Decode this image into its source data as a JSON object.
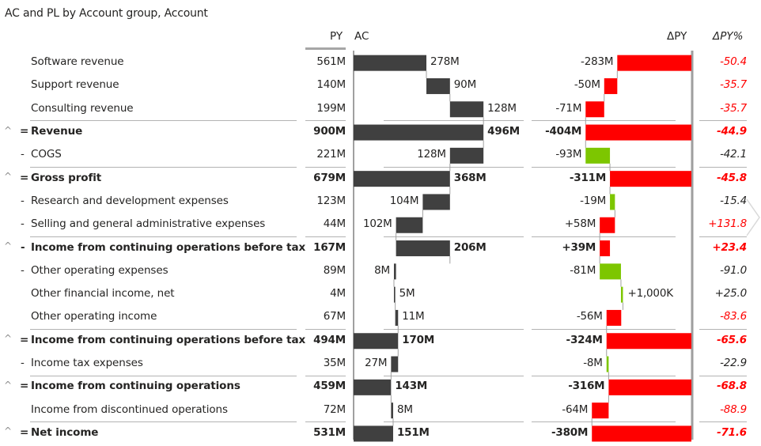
{
  "title": "AC and PL by Account group, Account",
  "headers": {
    "py": "PY",
    "ac": "AC",
    "dpy": "ΔPY",
    "dpy_pct": "ΔPY%"
  },
  "colors": {
    "bar_dark": "#404040",
    "negative": "#ff0000",
    "positive": "#7dc600",
    "text": "#252423",
    "separator": "#b3b3b3",
    "axis": "#808080"
  },
  "chart_data": {
    "type": "table",
    "title": "AC and PL by Account group, Account",
    "columns": [
      "Account",
      "PY",
      "AC",
      "ΔPY",
      "ΔPY%"
    ],
    "unit": "M",
    "rows": [
      {
        "label": "Software revenue",
        "op": "",
        "expander": false,
        "total": false,
        "py": "561M",
        "ac": "278M",
        "ac_value": 278,
        "ac_start": 0,
        "dpy": "-283M",
        "dpy_value": -283,
        "dpy_start": 0,
        "dpy_color": "negative",
        "dpy_pct": "-50.4",
        "pct_color": "negative",
        "sep": false
      },
      {
        "label": "Support revenue",
        "op": "",
        "expander": false,
        "total": false,
        "py": "140M",
        "ac": "90M",
        "ac_value": 90,
        "ac_start": 278,
        "dpy": "-50M",
        "dpy_value": -50,
        "dpy_start": -283,
        "dpy_color": "negative",
        "dpy_pct": "-35.7",
        "pct_color": "negative",
        "sep": false
      },
      {
        "label": "Consulting revenue",
        "op": "",
        "expander": false,
        "total": false,
        "py": "199M",
        "ac": "128M",
        "ac_value": 128,
        "ac_start": 368,
        "dpy": "-71M",
        "dpy_value": -71,
        "dpy_start": -333,
        "dpy_color": "negative",
        "dpy_pct": "-35.7",
        "pct_color": "negative",
        "sep": true
      },
      {
        "label": "Revenue",
        "op": "=",
        "expander": true,
        "total": true,
        "py": "900M",
        "ac": "496M",
        "ac_value": 496,
        "ac_start": 0,
        "dpy": "-404M",
        "dpy_value": -404,
        "dpy_start": 0,
        "dpy_color": "negative",
        "dpy_pct": "-44.9",
        "pct_color": "negative",
        "sep": false
      },
      {
        "label": "COGS",
        "op": "-",
        "expander": false,
        "total": false,
        "py": "221M",
        "ac": "128M",
        "ac_value": -128,
        "ac_start": 496,
        "dpy": "-93M",
        "dpy_value": 93,
        "dpy_start": -404,
        "dpy_color": "positive",
        "dpy_pct": "-42.1",
        "pct_color": "neutral",
        "sep": true
      },
      {
        "label": "Gross profit",
        "op": "=",
        "expander": true,
        "total": true,
        "py": "679M",
        "ac": "368M",
        "ac_value": 368,
        "ac_start": 0,
        "dpy": "-311M",
        "dpy_value": -311,
        "dpy_start": 0,
        "dpy_color": "negative",
        "dpy_pct": "-45.8",
        "pct_color": "negative",
        "sep": false
      },
      {
        "label": "Research and development expenses",
        "op": "-",
        "expander": false,
        "total": false,
        "py": "123M",
        "ac": "104M",
        "ac_value": -104,
        "ac_start": 368,
        "dpy": "-19M",
        "dpy_value": 19,
        "dpy_start": -311,
        "dpy_color": "positive",
        "dpy_pct": "-15.4",
        "pct_color": "neutral",
        "sep": false
      },
      {
        "label": "Selling and general administrative expenses",
        "op": "-",
        "expander": false,
        "total": false,
        "py": "44M",
        "ac": "102M",
        "ac_value": -102,
        "ac_start": 264,
        "dpy": "+58M",
        "dpy_value": -58,
        "dpy_start": -292,
        "dpy_color": "negative",
        "dpy_pct": "+131.8",
        "pct_color": "negative",
        "sep": true
      },
      {
        "label": "Income from continuing operations before tax",
        "op": "-",
        "expander": true,
        "total": true,
        "py": "167M",
        "ac": "206M",
        "ac_value": 206,
        "ac_start": 162,
        "dpy": "+39M",
        "dpy_value": -39,
        "dpy_start": -311,
        "dpy_color": "negative",
        "dpy_pct": "+23.4",
        "pct_color": "negative",
        "sep": false
      },
      {
        "label": "Other operating expenses",
        "op": "-",
        "expander": false,
        "total": false,
        "py": "89M",
        "ac": "8M",
        "ac_value": -8,
        "ac_start": 162,
        "dpy": "-81M",
        "dpy_value": 81,
        "dpy_start": -350,
        "dpy_color": "positive",
        "dpy_pct": "-91.0",
        "pct_color": "neutral",
        "sep": false
      },
      {
        "label": "Other financial income, net",
        "op": "",
        "expander": false,
        "total": false,
        "py": "4M",
        "ac": "5M",
        "ac_value": 5,
        "ac_start": 154,
        "dpy": "+1,000K",
        "dpy_value": 1,
        "dpy_start": -269,
        "dpy_color": "positive",
        "dpy_pct": "+25.0",
        "pct_color": "neutral",
        "sep": false
      },
      {
        "label": "Other operating income",
        "op": "",
        "expander": false,
        "total": false,
        "py": "67M",
        "ac": "11M",
        "ac_value": 11,
        "ac_start": 159,
        "dpy": "-56M",
        "dpy_value": -56,
        "dpy_start": -268,
        "dpy_color": "negative",
        "dpy_pct": "-83.6",
        "pct_color": "negative",
        "sep": true
      },
      {
        "label": "Income from continuing operations before tax",
        "op": "=",
        "expander": true,
        "total": true,
        "py": "494M",
        "ac": "170M",
        "ac_value": 170,
        "ac_start": 0,
        "dpy": "-324M",
        "dpy_value": -324,
        "dpy_start": 0,
        "dpy_color": "negative",
        "dpy_pct": "-65.6",
        "pct_color": "negative",
        "sep": false
      },
      {
        "label": "Income tax expenses",
        "op": "-",
        "expander": false,
        "total": false,
        "py": "35M",
        "ac": "27M",
        "ac_value": -27,
        "ac_start": 170,
        "dpy": "-8M",
        "dpy_value": 8,
        "dpy_start": -324,
        "dpy_color": "positive",
        "dpy_pct": "-22.9",
        "pct_color": "neutral",
        "sep": true
      },
      {
        "label": "Income from continuing operations",
        "op": "=",
        "expander": true,
        "total": true,
        "py": "459M",
        "ac": "143M",
        "ac_value": 143,
        "ac_start": 0,
        "dpy": "-316M",
        "dpy_value": -316,
        "dpy_start": 0,
        "dpy_color": "negative",
        "dpy_pct": "-68.8",
        "pct_color": "negative",
        "sep": false
      },
      {
        "label": "Income from discontinued operations",
        "op": "",
        "expander": false,
        "total": false,
        "py": "72M",
        "ac": "8M",
        "ac_value": 8,
        "ac_start": 143,
        "dpy": "-64M",
        "dpy_value": -64,
        "dpy_start": -316,
        "dpy_color": "negative",
        "dpy_pct": "-88.9",
        "pct_color": "negative",
        "sep": true
      },
      {
        "label": "Net income",
        "op": "=",
        "expander": true,
        "total": true,
        "py": "531M",
        "ac": "151M",
        "ac_value": 151,
        "ac_start": 0,
        "dpy": "-380M",
        "dpy_value": -380,
        "dpy_start": 0,
        "dpy_color": "negative",
        "dpy_pct": "-71.6",
        "pct_color": "negative",
        "sep": false
      }
    ]
  }
}
